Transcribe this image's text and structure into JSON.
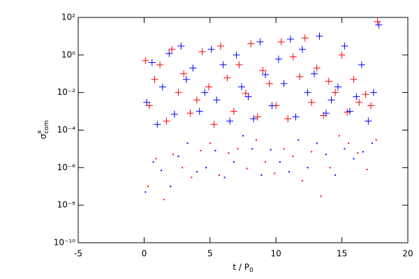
{
  "chart_data": {
    "type": "scatter",
    "x_label": {
      "base": "t / P",
      "sub": "0"
    },
    "y_label": {
      "base": "σ",
      "sup": "x",
      "sub": "com"
    },
    "xlim": [
      -5,
      20
    ],
    "xticks": [
      -5,
      0,
      5,
      10,
      15,
      20
    ],
    "ylim": [
      1e-10,
      100
    ],
    "ylog": true,
    "yticks": [
      {
        "value": 1e-10,
        "label": "10⁻¹⁰"
      },
      {
        "value": 1e-08,
        "label": "10⁻⁸"
      },
      {
        "value": 1e-06,
        "label": "10⁻⁶"
      },
      {
        "value": 0.0001,
        "label": "10⁻⁴"
      },
      {
        "value": 0.01,
        "label": "10⁻²"
      },
      {
        "value": 1,
        "label": "10⁰"
      },
      {
        "value": 100,
        "label": "10²"
      }
    ],
    "series": [
      {
        "color": "#ff0000",
        "marker": "plus",
        "x": [
          0.1,
          0.4,
          0.8,
          1.2,
          1.7,
          2.1,
          2.6,
          3.0,
          3.5,
          4.0,
          4.4,
          4.9,
          5.3,
          5.8,
          6.3,
          6.8,
          7.2,
          7.7,
          8.1,
          8.6,
          9.0,
          9.5,
          10.0,
          10.4,
          10.9,
          11.3,
          11.8,
          12.2,
          12.7,
          13.1,
          13.6,
          14.0,
          14.5,
          15.0,
          15.4,
          15.9,
          16.3,
          16.8,
          17.2,
          17.7
        ],
        "values": [
          0.5,
          0.002,
          0.05,
          0.3,
          0.0003,
          2,
          0.01,
          0.1,
          0.0008,
          0.004,
          1.5,
          0.02,
          0.0002,
          3,
          0.06,
          0.001,
          0.3,
          0.009,
          4,
          0.0005,
          0.15,
          0.03,
          0.002,
          5,
          0.0004,
          0.8,
          0.07,
          8,
          0.003,
          0.2,
          0.0006,
          0.04,
          0.01,
          1,
          0.0009,
          0.05,
          0.003,
          0.008,
          0.002,
          60
        ]
      },
      {
        "color": "#0000ff",
        "marker": "plus",
        "x": [
          0.2,
          0.6,
          1.0,
          1.4,
          1.9,
          2.3,
          2.8,
          3.2,
          3.7,
          4.2,
          4.6,
          5.1,
          5.5,
          6.0,
          6.5,
          7.0,
          7.4,
          7.9,
          8.3,
          8.8,
          9.2,
          9.7,
          10.2,
          10.6,
          11.1,
          11.5,
          12.0,
          12.4,
          12.9,
          13.3,
          13.8,
          14.2,
          14.7,
          15.2,
          15.6,
          16.1,
          16.5,
          17.0,
          17.4,
          17.8
        ],
        "values": [
          0.003,
          0.4,
          0.0002,
          0.02,
          1.2,
          0.0007,
          3,
          0.05,
          0.2,
          0.001,
          0.01,
          2,
          0.004,
          0.3,
          0.0003,
          1,
          0.02,
          0.006,
          0.0004,
          5,
          0.09,
          0.002,
          0.6,
          0.03,
          7,
          0.0005,
          2,
          0.01,
          0.1,
          10,
          0.0008,
          0.004,
          0.02,
          3,
          0.001,
          0.006,
          0.3,
          0.0003,
          0.01,
          40
        ]
      },
      {
        "color": "#ff0000",
        "marker": "dot",
        "x": [
          0.3,
          0.9,
          1.5,
          2.2,
          2.9,
          3.6,
          4.3,
          5.0,
          5.7,
          6.4,
          7.1,
          7.8,
          8.5,
          9.2,
          9.9,
          10.6,
          11.3,
          12.0,
          12.7,
          13.4,
          14.1,
          14.8,
          15.5,
          16.2,
          16.9,
          17.6
        ],
        "values": [
          1e-07,
          3e-06,
          2e-08,
          5e-06,
          1e-06,
          3e-07,
          8e-06,
          2e-05,
          4e-07,
          6e-06,
          1e-05,
          9e-07,
          3e-05,
          2e-06,
          5e-07,
          1e-05,
          4e-06,
          2e-07,
          7e-06,
          3e-08,
          1e-06,
          5e-05,
          2e-05,
          6e-06,
          8e-07,
          3e-05
        ]
      },
      {
        "color": "#0000ff",
        "marker": "dot",
        "x": [
          0.1,
          0.7,
          1.3,
          2.0,
          2.6,
          3.3,
          4.0,
          4.7,
          5.4,
          6.1,
          6.8,
          7.5,
          8.2,
          8.9,
          9.6,
          10.3,
          11.0,
          11.7,
          12.4,
          13.1,
          13.8,
          14.5,
          15.2,
          15.9,
          16.6,
          17.3
        ],
        "values": [
          5e-08,
          2e-06,
          7e-07,
          1e-07,
          4e-06,
          2e-05,
          6e-07,
          1e-06,
          8e-06,
          3e-07,
          2e-06,
          5e-05,
          1e-05,
          4e-07,
          9e-06,
          2e-06,
          6e-07,
          3e-05,
          1e-06,
          2e-05,
          5e-06,
          4e-07,
          1e-05,
          3e-06,
          7e-06,
          2e-05
        ]
      }
    ]
  }
}
